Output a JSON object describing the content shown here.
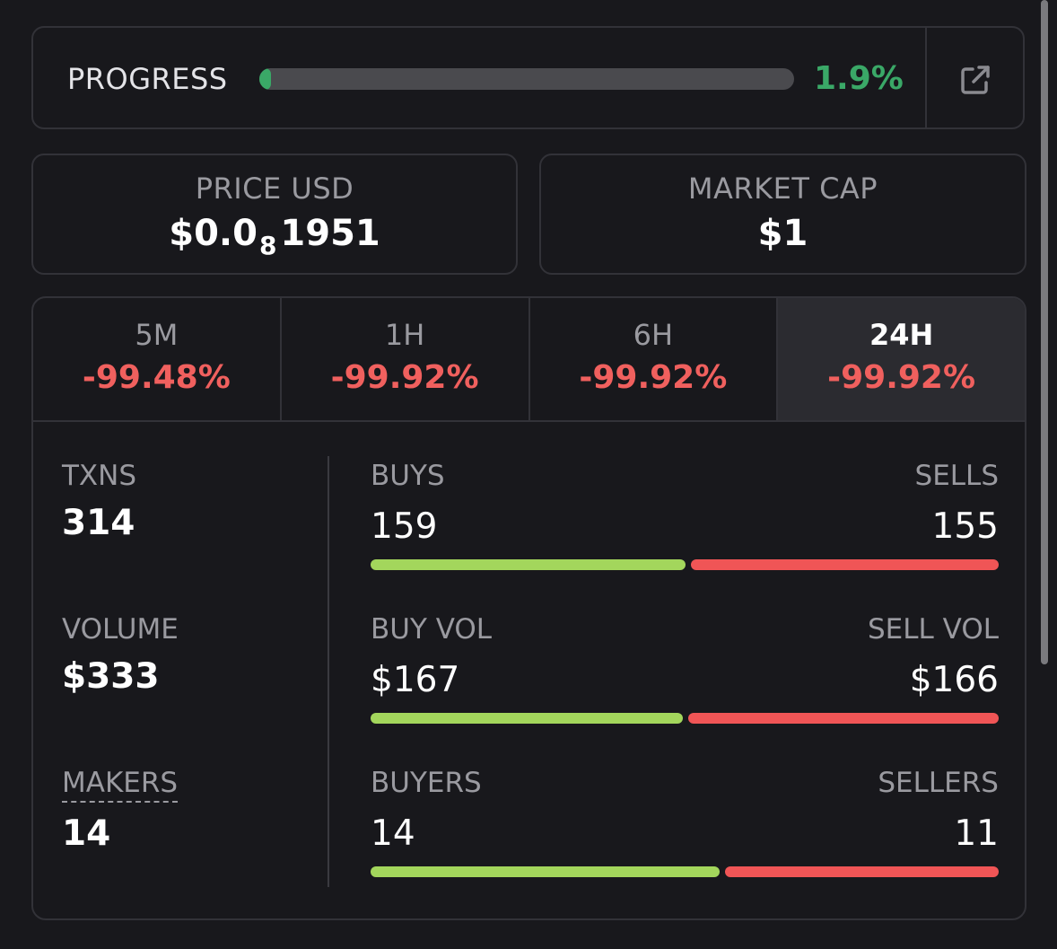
{
  "progress": {
    "label": "PROGRESS",
    "value_text": "1.9%",
    "fraction": 0.019,
    "external_link_icon": "external-link-icon",
    "accent_color": "#3aa867"
  },
  "price": {
    "label": "PRICE USD",
    "value_prefix": "$0.0",
    "value_zero_count": "8",
    "value_suffix": "1951"
  },
  "market_cap": {
    "label": "MARKET CAP",
    "value": "$1"
  },
  "tabs": [
    {
      "label": "5M",
      "change": "-99.48%"
    },
    {
      "label": "1H",
      "change": "-99.92%"
    },
    {
      "label": "6H",
      "change": "-99.92%"
    },
    {
      "label": "24H",
      "change": "-99.92%",
      "active": true
    }
  ],
  "metrics": {
    "txns": {
      "label": "TXNS",
      "value": "314"
    },
    "volume": {
      "label": "VOLUME",
      "value": "$333"
    },
    "makers": {
      "label": "MAKERS",
      "value": "14"
    }
  },
  "splits": {
    "txns": {
      "left_label": "BUYS",
      "right_label": "SELLS",
      "left_value": "159",
      "right_value": "155",
      "left_count": 159,
      "right_count": 155
    },
    "volume": {
      "left_label": "BUY VOL",
      "right_label": "SELL VOL",
      "left_value": "$167",
      "right_value": "$166",
      "left_count": 167,
      "right_count": 166
    },
    "makers": {
      "left_label": "BUYERS",
      "right_label": "SELLERS",
      "left_value": "14",
      "right_value": "11",
      "left_count": 14,
      "right_count": 11
    }
  },
  "colors": {
    "positive": "#3aa867",
    "negative": "#f0605e",
    "buy_bar": "#a3d65c",
    "sell_bar": "#f05556"
  }
}
